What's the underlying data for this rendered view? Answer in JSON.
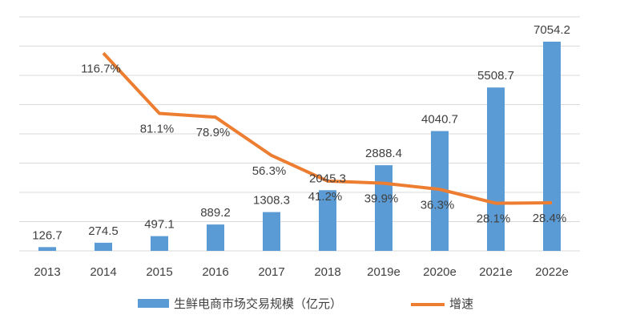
{
  "chart_data": {
    "type": "bar",
    "categories": [
      "2013",
      "2014",
      "2015",
      "2016",
      "2017",
      "2018",
      "2019e",
      "2020e",
      "2021e",
      "2022e"
    ],
    "series": [
      {
        "name": "生鲜电商市场交易规模（亿元）",
        "type": "bar",
        "color": "#5B9BD5",
        "values": [
          126.7,
          274.5,
          497.1,
          889.2,
          1308.3,
          2045.3,
          2888.4,
          4040.7,
          5508.7,
          7054.2
        ],
        "labels": [
          "126.7",
          "274.5",
          "497.1",
          "889.2",
          "1308.3",
          "2045.3",
          "2888.4",
          "4040.7",
          "5508.7",
          "7054.2"
        ]
      },
      {
        "name": "增速",
        "type": "line",
        "color": "#ED7D31",
        "values": [
          null,
          116.7,
          81.1,
          78.9,
          56.3,
          41.2,
          39.9,
          36.3,
          28.1,
          28.4
        ],
        "labels": [
          "",
          "116.7%",
          "81.1%",
          "78.9%",
          "56.3%",
          "41.2%",
          "39.9%",
          "36.3%",
          "28.1%",
          "28.4%"
        ]
      }
    ],
    "ylim": [
      0,
      8000
    ],
    "ylim_secondary": [
      0,
      140
    ],
    "grid": true,
    "legend": "bottom",
    "title": "",
    "xlabel": "",
    "ylabel": ""
  }
}
